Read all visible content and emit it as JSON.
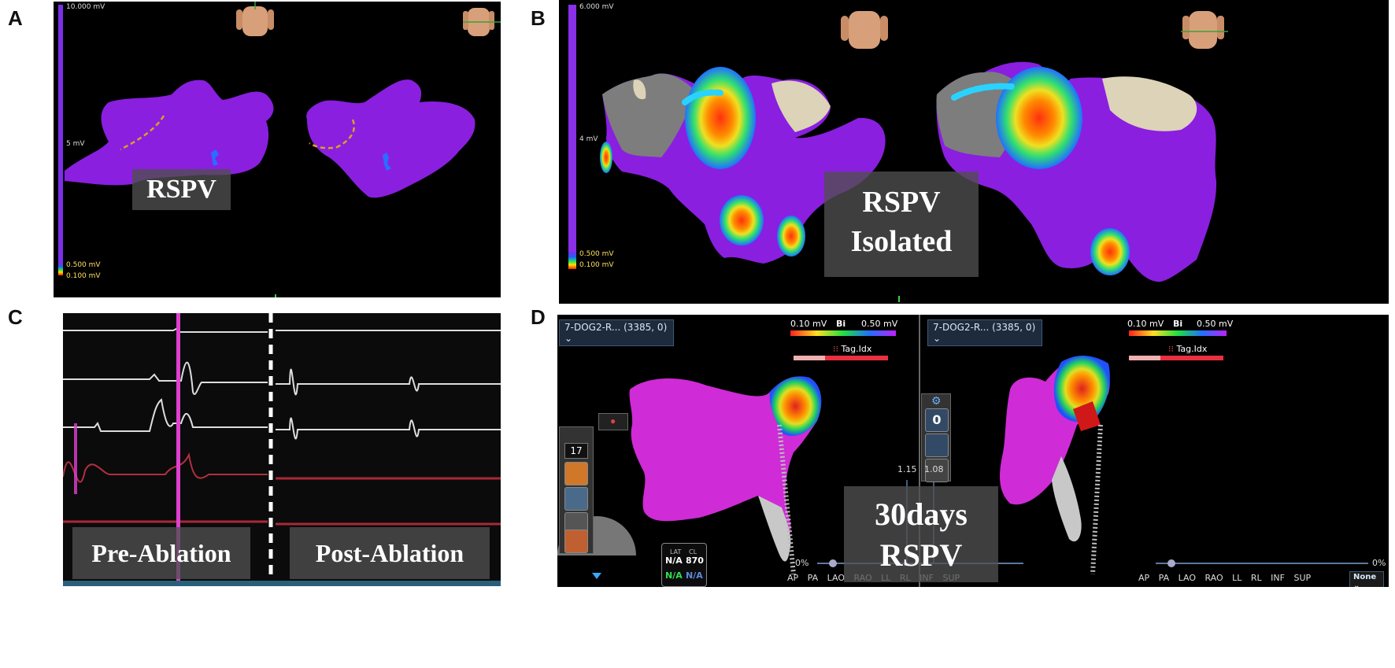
{
  "panels": {
    "a": {
      "label": "A",
      "overlay": "RSPV",
      "scale_top": "10.000 mV",
      "scale_mid": "5 mV",
      "scale_low": "0.500 mV",
      "scale_bottom": "0.100 mV"
    },
    "b": {
      "label": "B",
      "overlay_line1": "RSPV",
      "overlay_line2": "Isolated",
      "scale_top": "6.000 mV",
      "scale_mid": "4 mV",
      "scale_low": "0.500 mV",
      "scale_bottom": "0.100 mV"
    },
    "c": {
      "label": "C",
      "pre_label": "Pre-Ablation",
      "post_label": "Post-Ablation"
    },
    "d": {
      "label": "D",
      "overlay_line1": "30days",
      "overlay_line2": "RSPV",
      "left_dropdown": "7-DOG2-R... (3385, 0)",
      "right_dropdown": "7-DOG2-R... (3385, 0)",
      "colorbar_min": "0.10 mV",
      "colorbar_mode": "Bi",
      "colorbar_max": "0.50 mV",
      "tag_label": "Tag.Idx",
      "tool_number": "17",
      "zero_button": "0",
      "slider_value_left": "1.15",
      "slider_value_right": "1.08",
      "pct_left": "0%",
      "pct_right": "0%",
      "views_left": "AP PA LAO RAO LL RL INF SUP",
      "views_right": "AP PA LAO RAO LL RL INF SUP",
      "info_lat": "LAT",
      "info_cl": "CL",
      "info_na1": "N/A",
      "info_cl_value": "870",
      "info_na2": "N/A",
      "info_na3": "N/A",
      "none_dropdown": "None"
    }
  },
  "colors": {
    "purple_map": "#8a1fe0",
    "magenta_map": "#cf2bd6",
    "panel_bg": "#000000",
    "ring_dash": "#e0a020",
    "catheter": "#29d3ff"
  }
}
